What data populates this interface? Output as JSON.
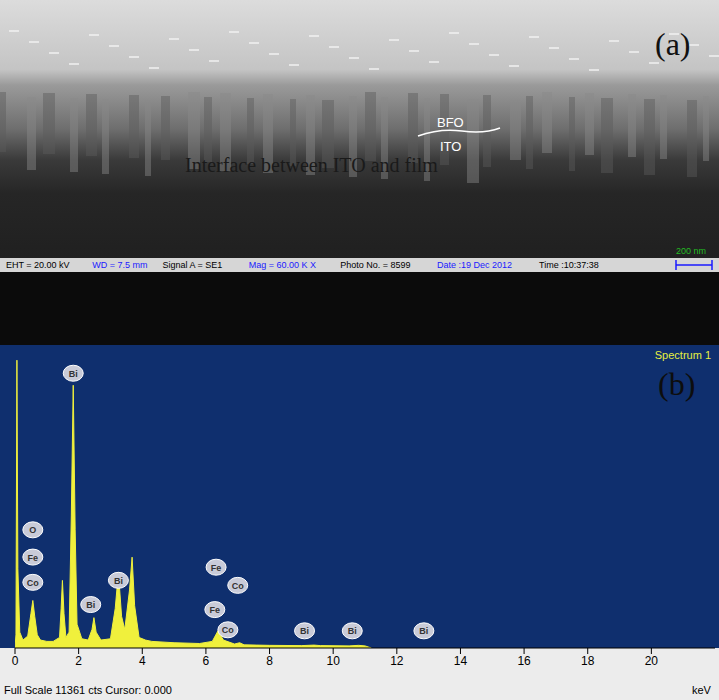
{
  "panel_a": {
    "label": "(a)",
    "layers": [
      "BFO",
      "ITO"
    ],
    "annotation": "Interface between ITO and film",
    "info_bar": [
      {
        "text": "EHT = 20.00 kV",
        "color": "#000000"
      },
      {
        "text": "WD = 7.5 mm",
        "color": "#1a1aff"
      },
      {
        "text": "Signal A = SE1",
        "color": "#000000"
      },
      {
        "text": "Mag = 60.00 K X",
        "color": "#1a1aff"
      },
      {
        "text": "Photo No. = 8599",
        "color": "#000000"
      },
      {
        "text": "Date :19 Dec 2012",
        "color": "#1a1aff"
      },
      {
        "text": "Time :10:37:38",
        "color": "#000000"
      }
    ],
    "scale_bar": "200 nm"
  },
  "chart_data": {
    "type": "area",
    "panel_label": "(b)",
    "title": "Spectrum 1",
    "x_label": "keV",
    "footer": "Full Scale 11361 cts Cursor: 0.000",
    "x": [
      0,
      0.03,
      0.06,
      0.09,
      0.15,
      0.25,
      0.4,
      0.5,
      0.56,
      0.62,
      0.7,
      0.8,
      1.0,
      1.2,
      1.4,
      1.45,
      1.49,
      1.54,
      1.6,
      1.7,
      1.77,
      1.83,
      1.89,
      1.95,
      2.1,
      2.3,
      2.42,
      2.48,
      2.55,
      2.7,
      3.0,
      3.15,
      3.25,
      3.35,
      3.45,
      3.6,
      3.68,
      3.76,
      3.9,
      4.1,
      4.3,
      5.0,
      5.8,
      6.2,
      6.38,
      6.55,
      6.9,
      7.06,
      7.2,
      7.6,
      8.0,
      9.0,
      9.4,
      9.6,
      10.5,
      10.8,
      11.0,
      11.2
    ],
    "values": [
      0,
      500,
      10900,
      3000,
      600,
      300,
      450,
      1300,
      1800,
      1200,
      500,
      300,
      250,
      250,
      400,
      1500,
      2560,
      1300,
      400,
      600,
      5000,
      9950,
      4500,
      900,
      350,
      300,
      700,
      1150,
      600,
      300,
      350,
      1500,
      2870,
      1200,
      700,
      2200,
      3440,
      1600,
      400,
      300,
      250,
      200,
      170,
      250,
      650,
      300,
      150,
      200,
      120,
      110,
      100,
      90,
      110,
      90,
      80,
      100,
      80,
      0
    ],
    "color": "#f0f03c",
    "xlim": [
      0,
      22
    ],
    "xticks": [
      0,
      2,
      4,
      6,
      8,
      10,
      12,
      14,
      16,
      18,
      20
    ],
    "ylim": [
      0,
      11361
    ],
    "tick_labels": "x",
    "grid": false,
    "peak_labels": [
      {
        "text": "Bi",
        "x": 1.83,
        "y": 10405
      },
      {
        "text": "O",
        "x": 0.56,
        "y": 4475
      },
      {
        "text": "Fe",
        "x": 0.56,
        "y": 3443
      },
      {
        "text": "Co",
        "x": 0.56,
        "y": 2486
      },
      {
        "text": "Bi",
        "x": 2.38,
        "y": 1645
      },
      {
        "text": "Bi",
        "x": 3.25,
        "y": 2563
      },
      {
        "text": "Fe",
        "x": 6.32,
        "y": 3060
      },
      {
        "text": "Co",
        "x": 7.0,
        "y": 2372
      },
      {
        "text": "Fe",
        "x": 6.28,
        "y": 1454
      },
      {
        "text": "Co",
        "x": 6.69,
        "y": 689
      },
      {
        "text": "Bi",
        "x": 9.1,
        "y": 650
      },
      {
        "text": "Bi",
        "x": 10.6,
        "y": 650
      },
      {
        "text": "Bi",
        "x": 12.85,
        "y": 650
      }
    ]
  }
}
